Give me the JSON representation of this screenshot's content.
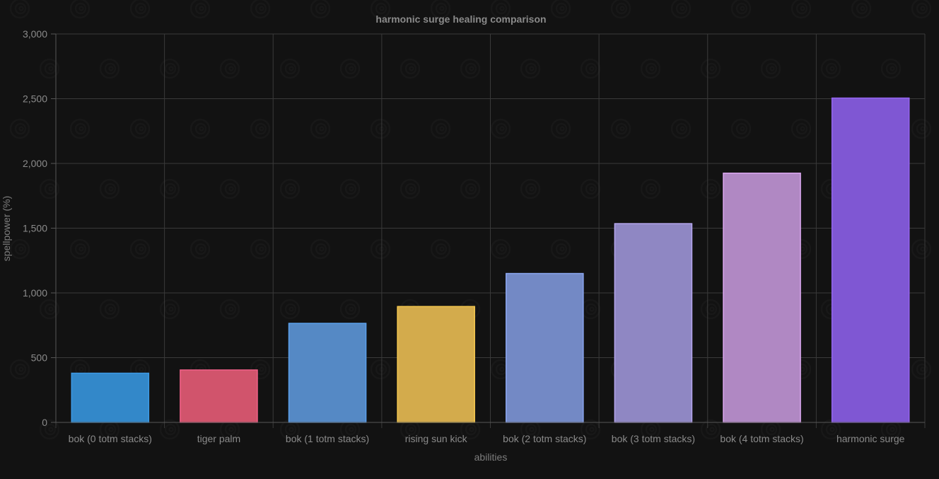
{
  "chart_data": {
    "type": "bar",
    "title": "harmonic surge healing comparison",
    "xlabel": "abilities",
    "ylabel": "spellpower (%)",
    "ylim": [
      0,
      3000
    ],
    "ytick_step": 500,
    "grid": true,
    "legend": "none",
    "categories": [
      "bok (0 totm stacks)",
      "tiger palm",
      "bok (1 totm stacks)",
      "rising sun kick",
      "bok (2 totm stacks)",
      "bok (3 totm stacks)",
      "bok (4 totm stacks)",
      "harmonic surge"
    ],
    "values": [
      380,
      405,
      765,
      895,
      1150,
      1535,
      1925,
      2505
    ],
    "colors": [
      "#3388c9",
      "#d1546c",
      "#5589c5",
      "#d3ab4c",
      "#7389c5",
      "#8f87c3",
      "#b088c3",
      "#7f57d3"
    ],
    "border_colors": [
      "#3d9be6",
      "#f06088",
      "#5aa0ec",
      "#f5c84e",
      "#8ba6f0",
      "#b7a7f0",
      "#dba6ef",
      "#9566f0"
    ]
  }
}
